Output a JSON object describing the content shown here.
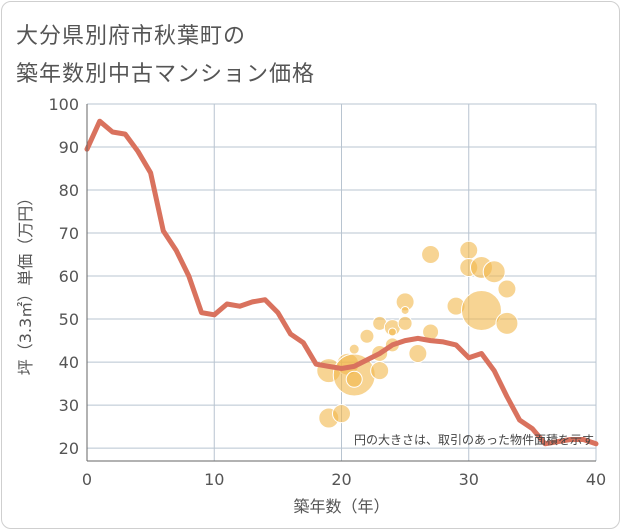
{
  "chart_data": {
    "type": "scatter+line",
    "title_line1": "大分県別府市秋葉町の",
    "title_line2": "築年数別中古マンション価格",
    "xlabel": "築年数（年）",
    "ylabel": "坪（3.3㎡）単価（万円）",
    "xlim": [
      0,
      40
    ],
    "ylim": [
      17,
      100
    ],
    "x_ticks": [
      0,
      10,
      20,
      30,
      40
    ],
    "y_ticks": [
      20,
      30,
      40,
      50,
      60,
      70,
      80,
      90,
      100
    ],
    "grid": true,
    "note": "円の大きさは、取引のあった物件面積を示す",
    "colors": {
      "line": "#d9725e",
      "bubble": "#f2b84b",
      "grid": "#b8c4d0",
      "axis": "#666666"
    },
    "trend_line": {
      "x": [
        0,
        1,
        2,
        3,
        4,
        5,
        6,
        7,
        8,
        9,
        10,
        11,
        12,
        13,
        14,
        15,
        16,
        17,
        18,
        19,
        20,
        21,
        22,
        23,
        24,
        25,
        26,
        27,
        28,
        29,
        30,
        31,
        32,
        33,
        34,
        35,
        36,
        37,
        38,
        39,
        40
      ],
      "y": [
        89.5,
        96,
        93.5,
        93,
        89,
        84,
        70.5,
        66,
        60,
        51.5,
        51,
        53.5,
        53,
        54,
        54.5,
        51.5,
        46.5,
        44.5,
        39.5,
        39,
        38.5,
        39,
        40.5,
        42,
        44,
        45,
        45.5,
        45,
        44.7,
        44,
        41,
        42,
        38,
        32,
        26.5,
        24.5,
        21,
        21.5,
        22,
        22,
        21
      ]
    },
    "bubbles": [
      {
        "x": 19,
        "y": 38,
        "size": 12
      },
      {
        "x": 19,
        "y": 27,
        "size": 10
      },
      {
        "x": 20,
        "y": 28,
        "size": 9
      },
      {
        "x": 20.5,
        "y": 39.5,
        "size": 11
      },
      {
        "x": 21,
        "y": 37,
        "size": 21
      },
      {
        "x": 21,
        "y": 36,
        "size": 8
      },
      {
        "x": 21,
        "y": 43,
        "size": 5
      },
      {
        "x": 22,
        "y": 46,
        "size": 7
      },
      {
        "x": 23,
        "y": 49,
        "size": 7
      },
      {
        "x": 23,
        "y": 42,
        "size": 8
      },
      {
        "x": 23,
        "y": 38,
        "size": 9
      },
      {
        "x": 24,
        "y": 48,
        "size": 8
      },
      {
        "x": 24,
        "y": 44,
        "size": 7
      },
      {
        "x": 24,
        "y": 47,
        "size": 4
      },
      {
        "x": 25,
        "y": 54,
        "size": 9
      },
      {
        "x": 25,
        "y": 52,
        "size": 4
      },
      {
        "x": 25,
        "y": 49,
        "size": 7
      },
      {
        "x": 26,
        "y": 42,
        "size": 9
      },
      {
        "x": 27,
        "y": 65,
        "size": 9
      },
      {
        "x": 27,
        "y": 47,
        "size": 8
      },
      {
        "x": 29,
        "y": 53,
        "size": 9
      },
      {
        "x": 30,
        "y": 66,
        "size": 9
      },
      {
        "x": 30,
        "y": 62,
        "size": 9
      },
      {
        "x": 31,
        "y": 52,
        "size": 20
      },
      {
        "x": 31,
        "y": 62,
        "size": 11
      },
      {
        "x": 32,
        "y": 61,
        "size": 11
      },
      {
        "x": 33,
        "y": 57,
        "size": 9
      },
      {
        "x": 33,
        "y": 49,
        "size": 11
      }
    ]
  }
}
